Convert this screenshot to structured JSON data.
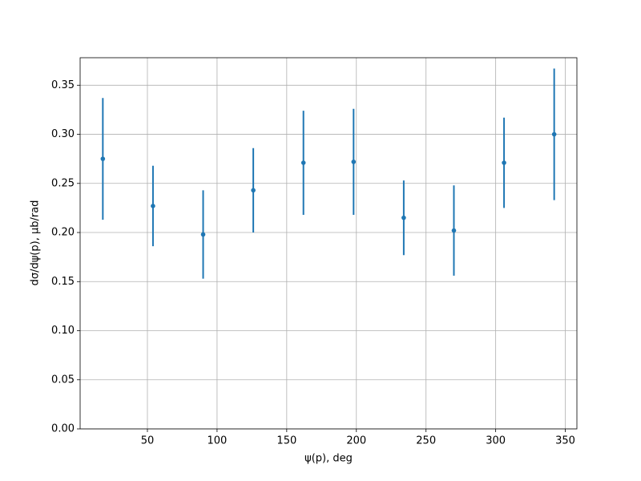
{
  "chart_data": {
    "type": "errorbar",
    "xlabel": "ψ(p), deg",
    "ylabel": "dσ/dψ(p), μb/rad",
    "x": [
      18,
      54,
      90,
      126,
      162,
      198,
      234,
      270,
      306,
      342
    ],
    "series": [
      {
        "color": "#1f77b4",
        "values": [
          0.275,
          0.227,
          0.198,
          0.243,
          0.271,
          0.272,
          0.215,
          0.202,
          0.271,
          0.3
        ],
        "errors": [
          0.062,
          0.041,
          0.045,
          0.043,
          0.053,
          0.054,
          0.038,
          0.046,
          0.046,
          0.067
        ]
      }
    ],
    "xlim": [
      1.7,
      358.3
    ],
    "ylim": [
      0,
      0.378
    ],
    "xticks": [
      50,
      100,
      150,
      200,
      250,
      300,
      350
    ],
    "yticks": [
      {
        "value": 0,
        "label": "0.00"
      },
      {
        "value": 0.05,
        "label": "0.05"
      },
      {
        "value": 0.1,
        "label": "0.10"
      },
      {
        "value": 0.15,
        "label": "0.15"
      },
      {
        "value": 0.2,
        "label": "0.20"
      },
      {
        "value": 0.25,
        "label": "0.25"
      },
      {
        "value": 0.3,
        "label": "0.30"
      },
      {
        "value": 0.35,
        "label": "0.35"
      }
    ],
    "grid": true
  }
}
